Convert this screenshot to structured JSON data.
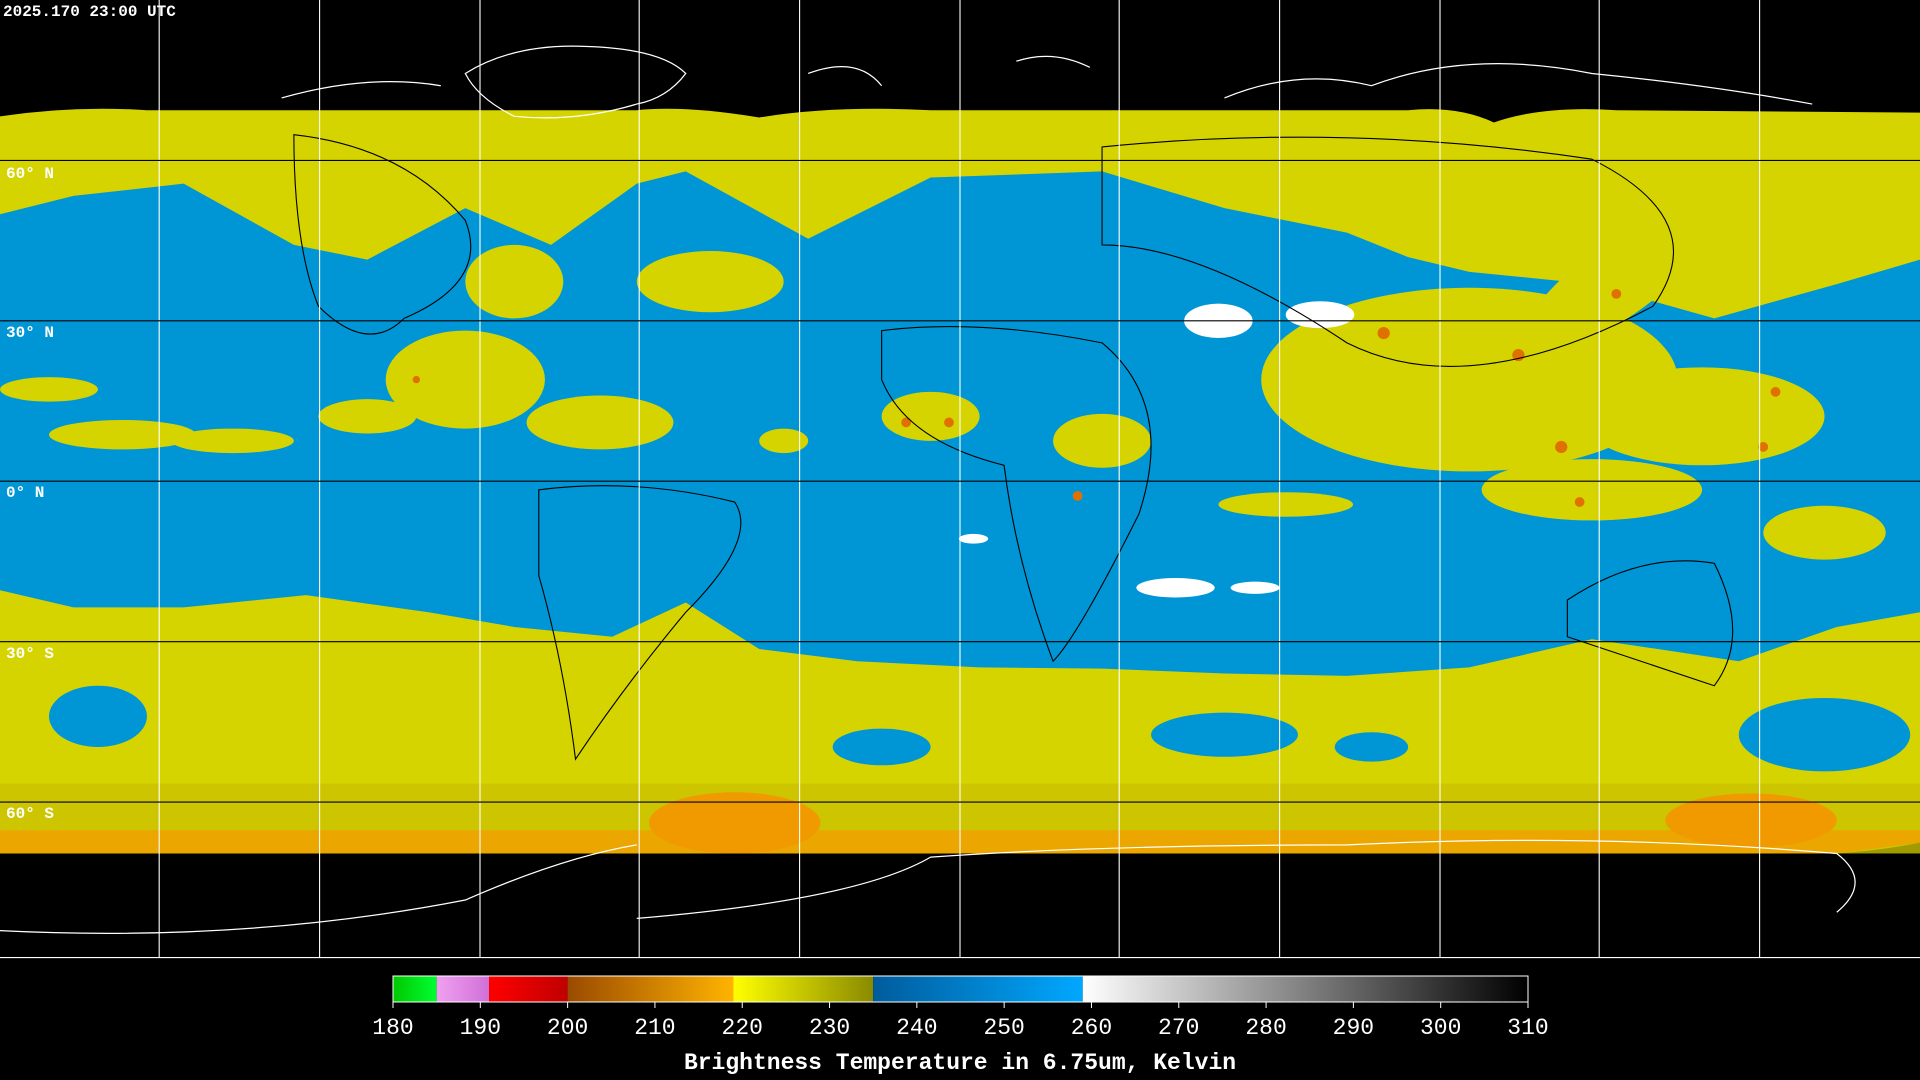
{
  "timestamp": "2025.170 23:00 UTC",
  "latitude_labels": [
    "60° N",
    "30° N",
    "0° N",
    "30° S",
    "60° S"
  ],
  "colorbar": {
    "title": "Brightness Temperature in 6.75um, Kelvin",
    "range": [
      180,
      310
    ],
    "ticks": [
      180,
      190,
      200,
      210,
      220,
      230,
      240,
      250,
      260,
      270,
      280,
      290,
      300,
      310
    ],
    "segments": [
      {
        "from": 180,
        "to": 185,
        "colors": [
          "#00c800",
          "#00ff30"
        ]
      },
      {
        "from": 185,
        "to": 191,
        "colors": [
          "#f0a0f0",
          "#d070d8"
        ]
      },
      {
        "from": 191,
        "to": 200,
        "colors": [
          "#ff0000",
          "#c00000"
        ]
      },
      {
        "from": 200,
        "to": 219,
        "colors": [
          "#9a4a00",
          "#ffb400"
        ]
      },
      {
        "from": 219,
        "to": 235,
        "colors": [
          "#ffff00",
          "#8a8a00"
        ]
      },
      {
        "from": 235,
        "to": 259,
        "colors": [
          "#005c9c",
          "#00a8ff"
        ]
      },
      {
        "from": 259,
        "to": 310,
        "colors": [
          "#ffffff",
          "#000000"
        ]
      }
    ]
  }
}
